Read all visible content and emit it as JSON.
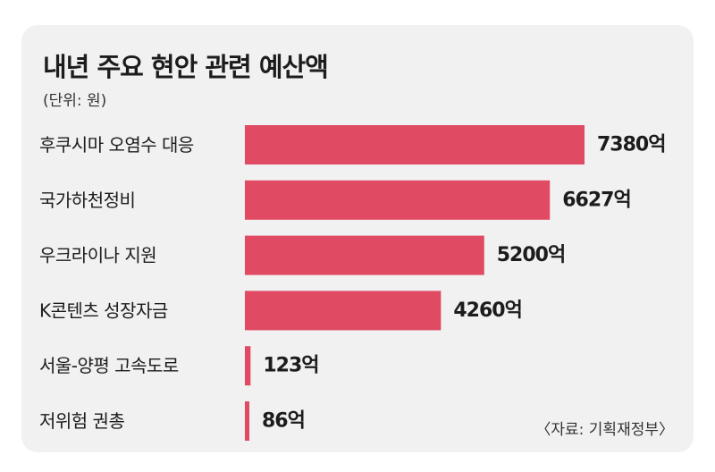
{
  "title": "내년 주요 현안 관련 예산액",
  "unit_note": "(단위: 원)",
  "source": "〈자료: 기획재정부〉",
  "colors": {
    "bar": "#e04a63",
    "background": "#f1f1f1",
    "text": "#1c1c1c"
  },
  "chart_data": {
    "type": "bar",
    "orientation": "horizontal",
    "title": "내년 주요 현안 관련 예산액",
    "categories": [
      "후쿠시마 오염수 대응",
      "국가하천정비",
      "우크라이나 지원",
      "K콘텐츠 성장자금",
      "서울-양평 고속도로",
      "저위험 권총"
    ],
    "values": [
      7380,
      6627,
      5200,
      4260,
      123,
      86
    ],
    "value_labels": [
      "7380억",
      "6627억",
      "5200억",
      "4260억",
      "123억",
      "86억"
    ],
    "xlabel": "",
    "ylabel": "",
    "grid": false,
    "legend": "none"
  }
}
